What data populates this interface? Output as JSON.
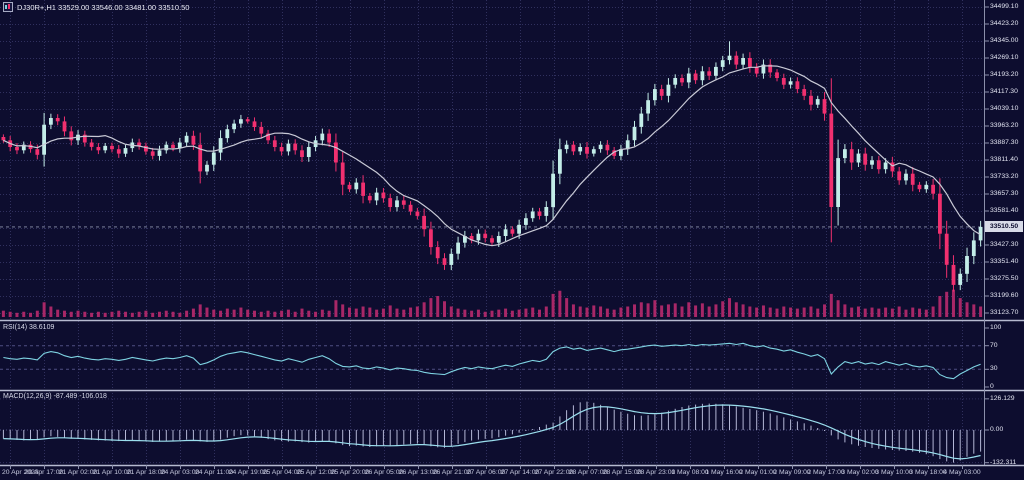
{
  "window": {
    "title": "DJ30R+,H1 33529.00 33546.00 33481.00 33510.50",
    "symbol": "DJ30R+",
    "timeframe": "H1"
  },
  "colors": {
    "background": "#0d0d2f",
    "grid": "#30305e",
    "bull": "#c3ede8",
    "bear": "#f1306f",
    "ma": "#c9cad6",
    "volume": "#a82767",
    "rsi": "#7ed3e2",
    "macd_signal": "#9adeed",
    "macd_hist": "#b4b7d6",
    "separator": "#b6bad0",
    "axis_border": "#8b8fab",
    "level": "#4e4e82",
    "current_line": "#8d93ad",
    "price_box_bg": "#d7dae7",
    "price_box_text": "#0c0c2e"
  },
  "price_axis": {
    "labels": [
      "34499.10",
      "34423.20",
      "34345.00",
      "34269.10",
      "34193.20",
      "34117.30",
      "34039.10",
      "33963.20",
      "33887.30",
      "33811.40",
      "33733.20",
      "33657.30",
      "33581.40",
      "33505.50",
      "33427.30",
      "33351.40",
      "33275.50",
      "33199.60",
      "33123.70"
    ],
    "current_price": "33510.50"
  },
  "time_axis": {
    "labels": [
      "20 Apr 2023",
      "20 Apr 17:00",
      "21 Apr 02:00",
      "21 Apr 10:00",
      "21 Apr 18:00",
      "24 Apr 03:00",
      "24 Apr 11:00",
      "24 Apr 19:00",
      "25 Apr 04:00",
      "25 Apr 12:00",
      "25 Apr 20:00",
      "26 Apr 05:00",
      "26 Apr 13:00",
      "26 Apr 21:00",
      "27 Apr 06:00",
      "27 Apr 14:00",
      "27 Apr 22:00",
      "28 Apr 07:00",
      "28 Apr 15:00",
      "28 Apr 23:00",
      "1 May 08:00",
      "1 May 16:00",
      "2 May 01:00",
      "2 May 09:00",
      "2 May 17:00",
      "3 May 02:00",
      "3 May 10:00",
      "3 May 18:00",
      "4 May 03:00"
    ]
  },
  "indicators": {
    "rsi": {
      "label": "RSI(14) 38.6109",
      "axis_labels": [
        "100",
        "70",
        "30",
        "0"
      ]
    },
    "macd": {
      "label": "MACD(12,26,9) -87.489 -106.018",
      "axis_labels": [
        "126.129",
        "0.00",
        "-132.311"
      ]
    }
  },
  "chart_data": [
    {
      "type": "candlestick",
      "name": "DJ30R+ H1 price",
      "ylabel": "price",
      "ylim": [
        33075,
        34540
      ],
      "x_start": "20 Apr 2023",
      "x_end": "4 May 03:00",
      "ma_period": 20,
      "chart_high": 34345,
      "chart_low": 33220,
      "closes": [
        33900,
        33870,
        33855,
        33880,
        33860,
        33835,
        33970,
        34000,
        33985,
        33940,
        33900,
        33925,
        33890,
        33870,
        33855,
        33875,
        33860,
        33840,
        33865,
        33890,
        33875,
        33850,
        33830,
        33855,
        33880,
        33865,
        33890,
        33920,
        33880,
        33760,
        33790,
        33845,
        33910,
        33950,
        33975,
        33995,
        33985,
        33960,
        33930,
        33900,
        33870,
        33850,
        33885,
        33855,
        33825,
        33870,
        33900,
        33930,
        33890,
        33800,
        33700,
        33680,
        33710,
        33650,
        33630,
        33665,
        33640,
        33600,
        33630,
        33610,
        33580,
        33560,
        33500,
        33420,
        33370,
        33340,
        33390,
        33440,
        33470,
        33450,
        33480,
        33460,
        33440,
        33470,
        33500,
        33480,
        33520,
        33550,
        33580,
        33560,
        33600,
        33750,
        33860,
        33880,
        33850,
        33870,
        33840,
        33860,
        33880,
        33855,
        33830,
        33860,
        33900,
        33960,
        34020,
        34080,
        34130,
        34100,
        34150,
        34180,
        34160,
        34200,
        34170,
        34210,
        34190,
        34230,
        34260,
        34280,
        34240,
        34270,
        34230,
        34200,
        34240,
        34205,
        34180,
        34150,
        34165,
        34130,
        34100,
        34060,
        34085,
        34020,
        33600,
        33820,
        33860,
        33800,
        33840,
        33790,
        33810,
        33770,
        33800,
        33760,
        33720,
        33750,
        33700,
        33680,
        33700,
        33660,
        33480,
        33340,
        33250,
        33300,
        33380,
        33450,
        33510.5
      ]
    },
    {
      "type": "bar",
      "name": "tick-volume",
      "values": [
        6,
        5,
        4,
        5,
        4,
        6,
        14,
        10,
        7,
        6,
        5,
        6,
        5,
        4,
        5,
        4,
        5,
        6,
        5,
        4,
        5,
        6,
        4,
        5,
        6,
        5,
        4,
        6,
        8,
        12,
        9,
        7,
        6,
        8,
        7,
        9,
        7,
        6,
        5,
        6,
        5,
        6,
        7,
        5,
        8,
        6,
        5,
        7,
        6,
        16,
        12,
        9,
        8,
        10,
        9,
        7,
        8,
        11,
        8,
        7,
        9,
        10,
        14,
        18,
        20,
        15,
        10,
        8,
        7,
        6,
        7,
        5,
        6,
        7,
        8,
        6,
        7,
        8,
        9,
        7,
        10,
        22,
        25,
        18,
        12,
        10,
        9,
        11,
        10,
        8,
        7,
        9,
        10,
        12,
        14,
        13,
        16,
        11,
        12,
        13,
        10,
        14,
        11,
        13,
        10,
        12,
        15,
        18,
        14,
        12,
        10,
        9,
        11,
        9,
        8,
        10,
        9,
        8,
        9,
        10,
        8,
        12,
        22,
        16,
        12,
        9,
        10,
        8,
        9,
        8,
        9,
        8,
        10,
        7,
        9,
        8,
        7,
        10,
        20,
        24,
        26,
        18,
        14,
        12,
        10
      ]
    },
    {
      "type": "line",
      "name": "RSI(14)",
      "ylim": [
        0,
        100
      ],
      "levels": [
        70,
        30
      ],
      "last_value": 38.6109,
      "values": [
        50,
        48,
        47,
        49,
        48,
        46,
        57,
        60,
        58,
        53,
        50,
        52,
        49,
        47,
        46,
        48,
        47,
        45,
        47,
        50,
        48,
        46,
        44,
        47,
        49,
        48,
        50,
        53,
        49,
        38,
        41,
        46,
        52,
        56,
        58,
        60,
        58,
        55,
        52,
        49,
        46,
        44,
        48,
        45,
        42,
        47,
        50,
        53,
        48,
        40,
        35,
        34,
        36,
        32,
        31,
        34,
        32,
        29,
        32,
        31,
        29,
        28,
        25,
        23,
        22,
        21,
        26,
        30,
        33,
        31,
        34,
        32,
        31,
        34,
        37,
        35,
        39,
        42,
        45,
        43,
        47,
        60,
        66,
        68,
        64,
        66,
        62,
        64,
        66,
        63,
        60,
        63,
        64,
        66,
        68,
        70,
        71,
        69,
        70,
        71,
        70,
        72,
        70,
        72,
        71,
        72,
        73,
        74,
        72,
        74,
        70,
        68,
        70,
        66,
        64,
        61,
        63,
        59,
        56,
        52,
        55,
        48,
        22,
        34,
        43,
        40,
        43,
        39,
        41,
        38,
        43,
        40,
        37,
        40,
        36,
        34,
        36,
        33,
        21,
        16,
        14,
        22,
        28,
        34,
        38.61
      ]
    },
    {
      "type": "macd",
      "name": "MACD(12,26,9)",
      "ylim": [
        -132.311,
        126.129
      ],
      "last_main": -87.489,
      "last_signal": -106.018,
      "histogram": [
        -35,
        -38,
        -40,
        -42,
        -40,
        -38,
        -30,
        -25,
        -28,
        -32,
        -35,
        -36,
        -38,
        -40,
        -42,
        -43,
        -44,
        -45,
        -44,
        -42,
        -44,
        -46,
        -48,
        -47,
        -45,
        -43,
        -41,
        -39,
        -41,
        -46,
        -48,
        -45,
        -39,
        -31,
        -25,
        -21,
        -22,
        -26,
        -31,
        -37,
        -42,
        -45,
        -47,
        -46,
        -49,
        -51,
        -48,
        -45,
        -47,
        -54,
        -61,
        -65,
        -63,
        -67,
        -69,
        -66,
        -63,
        -65,
        -61,
        -59,
        -57,
        -55,
        -60,
        -66,
        -70,
        -72,
        -66,
        -56,
        -49,
        -43,
        -39,
        -36,
        -34,
        -29,
        -23,
        -18,
        -11,
        -4,
        4,
        12,
        22,
        30,
        55,
        80,
        100,
        112,
        115,
        110,
        102,
        92,
        82,
        74,
        66,
        60,
        58,
        60,
        64,
        70,
        78,
        86,
        93,
        99,
        103,
        106,
        107,
        106,
        104,
        100,
        95,
        90,
        85,
        80,
        74,
        67,
        59,
        51,
        43,
        35,
        27,
        18,
        8,
        -4,
        -22,
        -38,
        -50,
        -58,
        -64,
        -69,
        -73,
        -76,
        -79,
        -81,
        -83,
        -85,
        -88,
        -92,
        -98,
        -106,
        -118,
        -127,
        -132,
        -124,
        -108,
        -96,
        -87.5
      ]
    }
  ]
}
